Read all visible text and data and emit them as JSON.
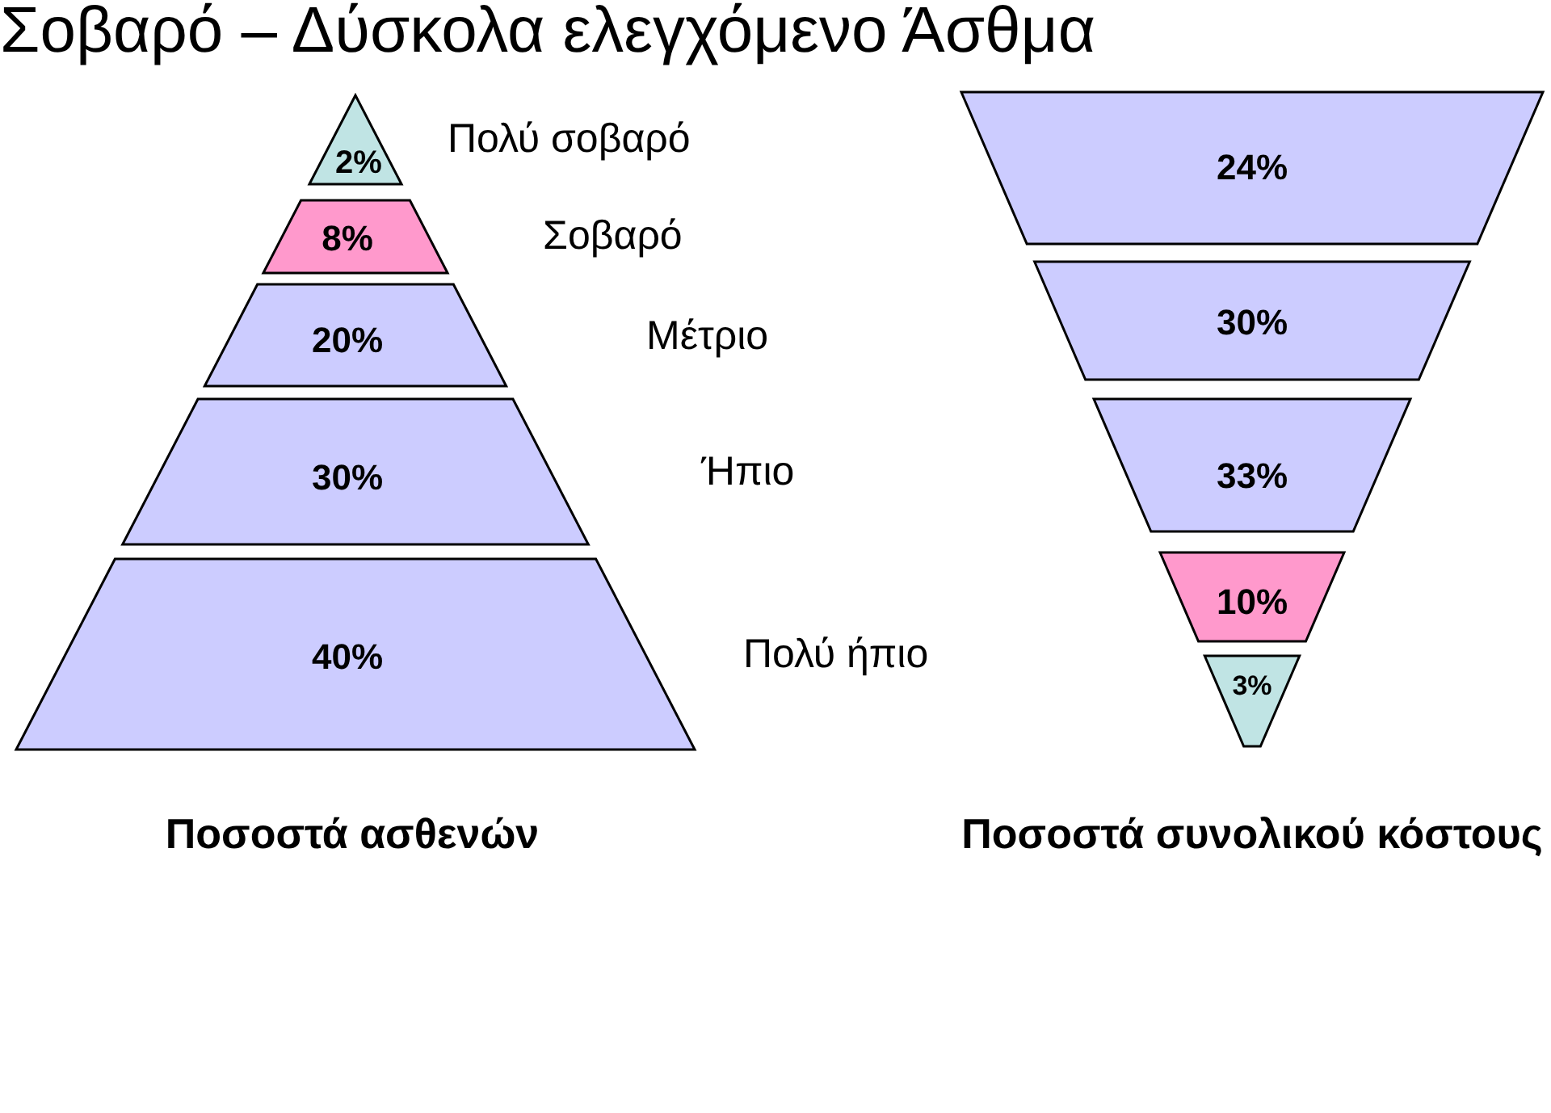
{
  "chart_data": [
    {
      "type": "other",
      "title": "Σοβαρό – Δύσκολα ελεγχόμενο Άσθμα",
      "xlabel": "Ποσοστά ασθενών",
      "categories": [
        "Πολύ σοβαρό",
        "Σοβαρό",
        "Μέτριο",
        "Ήπιο",
        "Πολύ ήπιο"
      ],
      "values": [
        2,
        8,
        20,
        30,
        40
      ],
      "value_labels": [
        "2%",
        "8%",
        "20%",
        "30%",
        "40%"
      ],
      "colors": [
        "#c0e4e4",
        "#ff99cc",
        "#ccccff",
        "#ccccff",
        "#ccccff"
      ]
    },
    {
      "type": "other",
      "xlabel": "Ποσοστά συνολικού κόστους",
      "categories": [
        null,
        null,
        null,
        null,
        null
      ],
      "values": [
        24,
        30,
        33,
        10,
        3
      ],
      "value_labels": [
        "24%",
        "30%",
        "33%",
        "10%",
        "3%"
      ],
      "colors": [
        "#ccccff",
        "#ccccff",
        "#ccccff",
        "#ff99cc",
        "#c0e4e4"
      ]
    }
  ]
}
